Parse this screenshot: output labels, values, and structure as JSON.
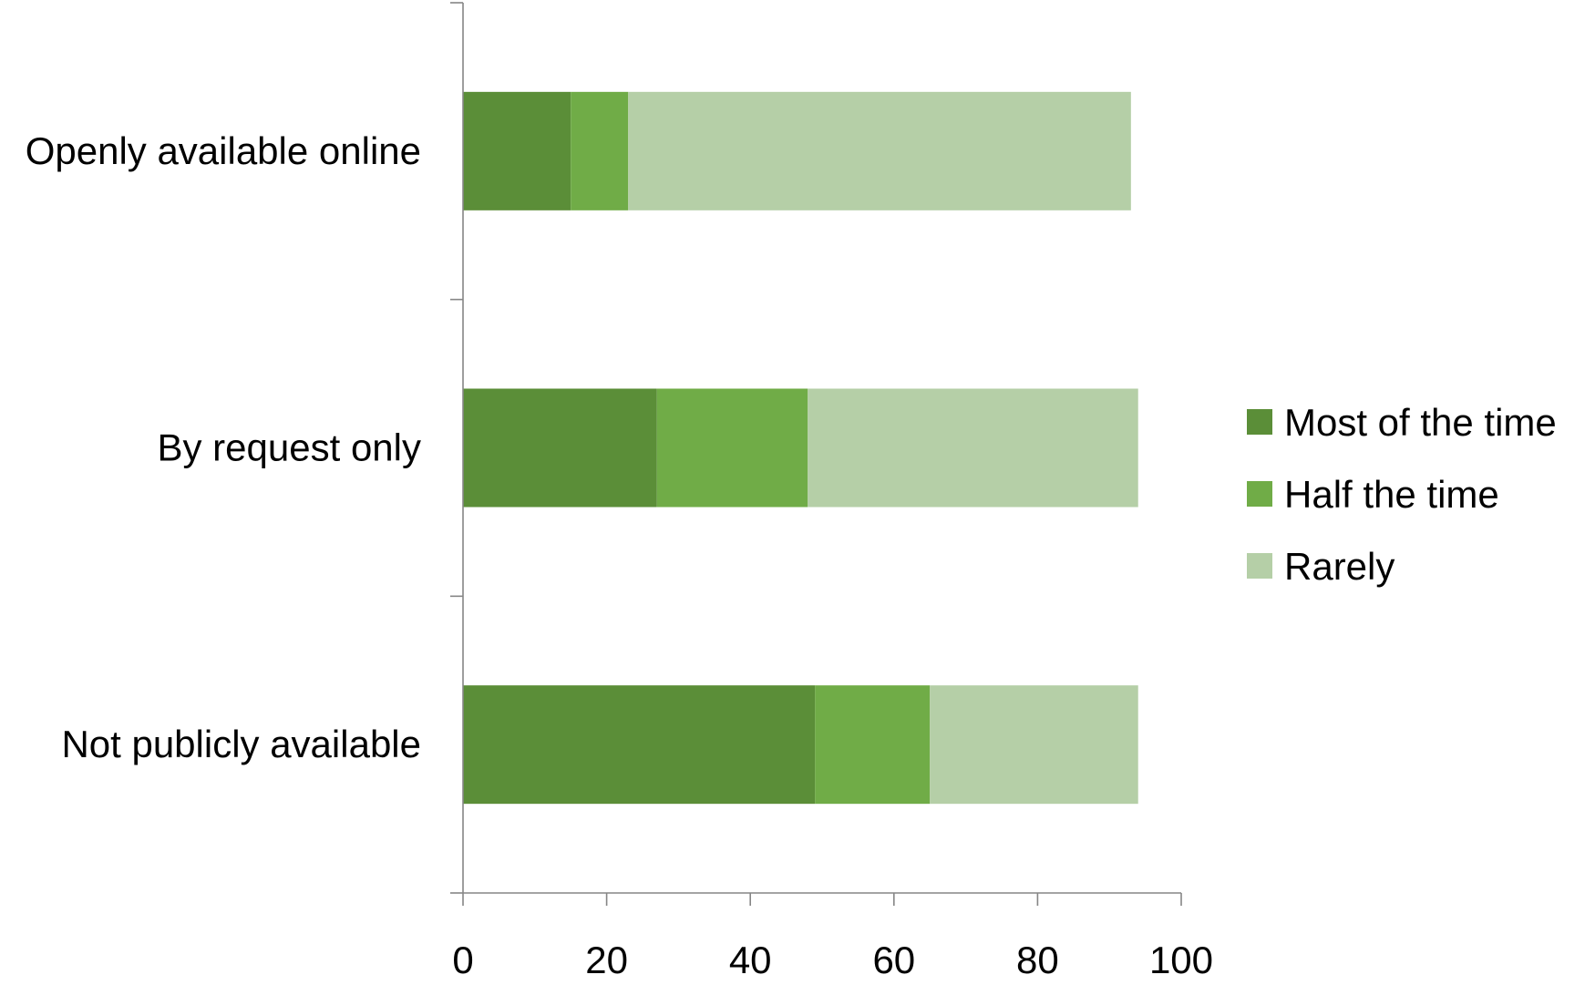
{
  "chart_data": {
    "type": "bar",
    "orientation": "horizontal",
    "stacked": true,
    "title": "",
    "xlabel": "",
    "ylabel": "",
    "categories": [
      "Openly available online",
      "By request only",
      "Not publicly available"
    ],
    "series": [
      {
        "name": "Most of the time",
        "color": "#5b8e38",
        "values": [
          15,
          27,
          49
        ]
      },
      {
        "name": "Half the time",
        "color": "#70ac47",
        "values": [
          8,
          21,
          16
        ]
      },
      {
        "name": "Rarely",
        "color": "#b5cfa7",
        "values": [
          70,
          46,
          29
        ]
      }
    ],
    "xlim": [
      0,
      100
    ],
    "xticks": [
      "0",
      "20",
      "40",
      "60",
      "80",
      "100"
    ],
    "grid": false,
    "legend": "right"
  }
}
